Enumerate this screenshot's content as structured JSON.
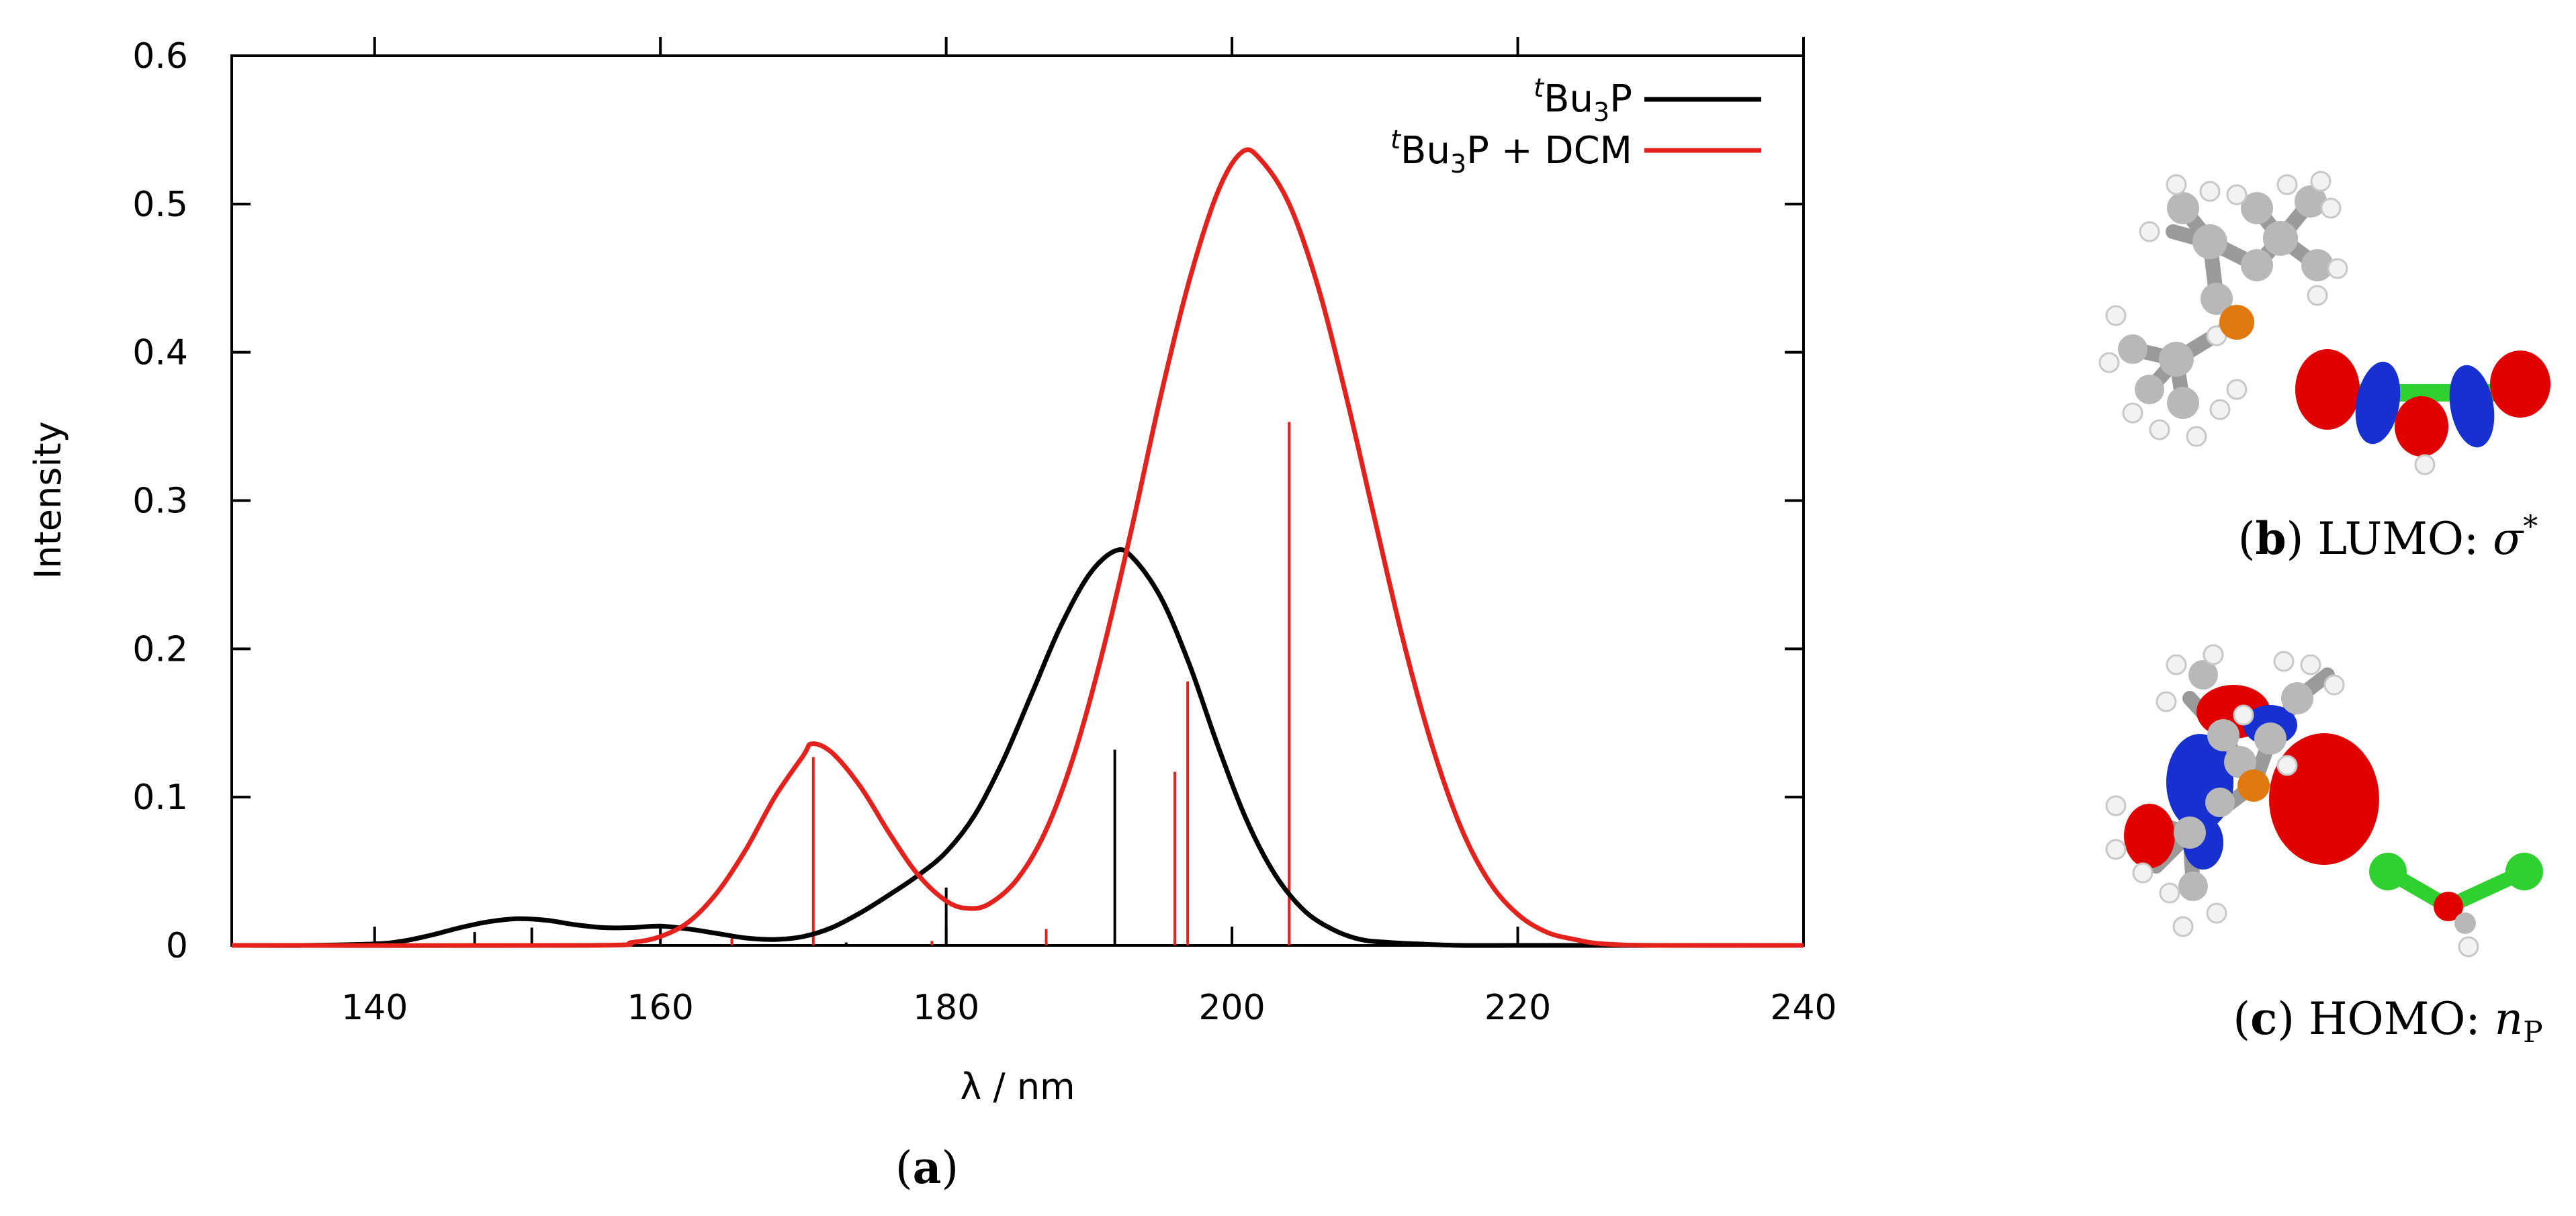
{
  "colors": {
    "bu3p": "#000000",
    "bu3p_dcm": "#e3211d",
    "lobe_red": "#e00000",
    "lobe_blue": "#1730d0",
    "carbon": "#b8b8b8",
    "hydrogen": "#f2f2f2",
    "phosphorus": "#e07a10",
    "chlorine": "#2fd02f"
  },
  "chart_data": {
    "type": "line",
    "xlabel": "λ / nm",
    "ylabel": "Intensity",
    "xlim": [
      130,
      240
    ],
    "ylim": [
      0,
      0.6
    ],
    "xticks": [
      "140",
      "160",
      "180",
      "200",
      "220",
      "240"
    ],
    "yticks": [
      "0",
      "0.1",
      "0.2",
      "0.3",
      "0.4",
      "0.5",
      "0.6"
    ],
    "legend_position": "top-right",
    "series": [
      {
        "name_sup": "t",
        "name_main": "Bu",
        "name_sub": "3",
        "name_tail": "P",
        "color_key": "bu3p",
        "x": [
          130,
          135,
          140,
          142,
          144,
          146,
          148,
          150,
          152,
          154,
          156,
          158,
          160,
          162,
          164,
          166,
          168,
          170,
          172,
          174,
          176,
          178,
          180,
          182,
          184,
          186,
          188,
          190,
          191.8,
          193,
          195,
          197,
          199,
          201,
          203,
          205,
          207,
          209,
          211,
          213,
          216,
          220,
          225,
          240
        ],
        "y": [
          0,
          0,
          0.001,
          0.003,
          0.007,
          0.012,
          0.016,
          0.018,
          0.017,
          0.014,
          0.012,
          0.012,
          0.013,
          0.011,
          0.008,
          0.005,
          0.004,
          0.006,
          0.012,
          0.022,
          0.034,
          0.047,
          0.063,
          0.088,
          0.125,
          0.17,
          0.215,
          0.25,
          0.266,
          0.262,
          0.235,
          0.19,
          0.135,
          0.085,
          0.048,
          0.024,
          0.011,
          0.004,
          0.002,
          0.001,
          0,
          0,
          0,
          0
        ],
        "sticks": [
          [
            147,
            0.009
          ],
          [
            151,
            0.012
          ],
          [
            165,
            0.004
          ],
          [
            173,
            0.002
          ],
          [
            180,
            0.039
          ],
          [
            191.8,
            0.132
          ]
        ]
      },
      {
        "name_sup": "t",
        "name_main": "Bu",
        "name_sub": "3",
        "name_tail": "P + DCM",
        "color_key": "bu3p_dcm",
        "x": [
          130,
          155,
          158,
          160,
          162,
          164,
          166,
          168,
          170,
          170.6,
          172,
          174,
          176,
          178,
          180,
          181.5,
          183,
          185,
          187,
          189,
          191,
          193,
          195,
          197,
          199,
          200.7,
          202,
          204,
          206,
          208,
          210,
          212,
          214,
          216,
          218,
          220,
          222,
          224,
          226,
          230,
          240
        ],
        "y": [
          0,
          0,
          0.002,
          0.006,
          0.016,
          0.036,
          0.065,
          0.1,
          0.128,
          0.136,
          0.13,
          0.107,
          0.076,
          0.048,
          0.03,
          0.025,
          0.028,
          0.045,
          0.078,
          0.13,
          0.2,
          0.282,
          0.37,
          0.448,
          0.508,
          0.535,
          0.53,
          0.5,
          0.445,
          0.37,
          0.287,
          0.205,
          0.135,
          0.08,
          0.043,
          0.021,
          0.009,
          0.004,
          0.001,
          0,
          0
        ],
        "sticks": [
          [
            165,
            0.007
          ],
          [
            170.7,
            0.127
          ],
          [
            179,
            0.003
          ],
          [
            187,
            0.011
          ],
          [
            196,
            0.117
          ],
          [
            196.9,
            0.178
          ],
          [
            204,
            0.353
          ]
        ]
      }
    ]
  },
  "panels": {
    "a": {
      "label": "a"
    },
    "b": {
      "label": "b",
      "orbital": "LUMO:",
      "symbol": "σ",
      "sup": "*"
    },
    "c": {
      "label": "c",
      "orbital": "HOMO:",
      "symbol": "n",
      "sub": "P"
    }
  }
}
